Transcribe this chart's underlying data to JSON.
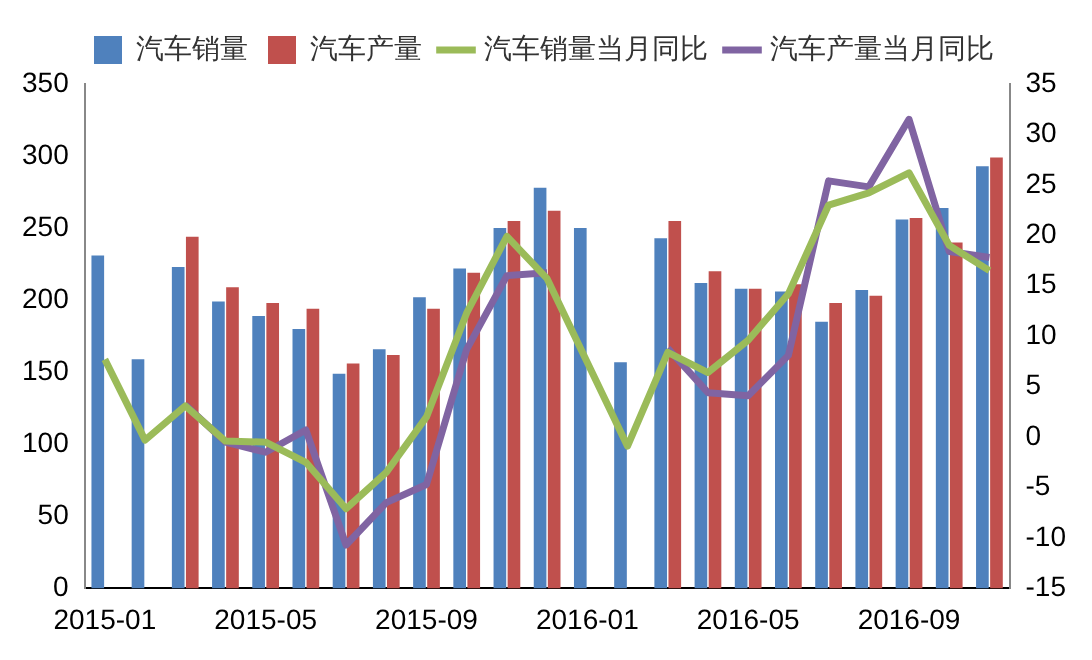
{
  "chart_data": {
    "type": "bar",
    "categories": [
      "2015-01",
      null,
      null,
      null,
      "2015-05",
      null,
      null,
      null,
      "2015-09",
      null,
      null,
      null,
      "2016-01",
      null,
      null,
      null,
      "2016-05",
      null,
      null,
      null,
      "2016-09",
      null,
      null
    ],
    "series": [
      {
        "name": "汽车销量",
        "color": "#4f81bd",
        "values": [
          231,
          159,
          223,
          199,
          189,
          180,
          149,
          166,
          202,
          222,
          250,
          278,
          250,
          157,
          243,
          212,
          208,
          206,
          185,
          207,
          256,
          264,
          293
        ]
      },
      {
        "name": "汽车产量",
        "color": "#c0504d",
        "values": [
          null,
          null,
          244,
          209,
          198,
          194,
          156,
          162,
          194,
          219,
          255,
          262,
          null,
          null,
          255,
          220,
          208,
          211,
          198,
          203,
          257,
          240,
          299
        ]
      },
      {
        "name": "汽车销量当月同比",
        "type": "line",
        "axis": "y2",
        "color": "#9bbb59",
        "values": [
          7.7,
          -0.3,
          3.1,
          -0.4,
          -0.5,
          -2.5,
          -7.1,
          -3.5,
          2.0,
          12.3,
          19.9,
          15.7,
          7.4,
          -0.9,
          8.4,
          6.4,
          9.6,
          14.2,
          23.0,
          24.2,
          26.2,
          19.0,
          16.5
        ]
      },
      {
        "name": "汽车产量当月同比",
        "type": "line",
        "axis": "y2",
        "color": "#8064a2",
        "values": [
          null,
          null,
          3.2,
          -0.5,
          -1.5,
          0.7,
          -10.7,
          -6.5,
          -4.7,
          8.7,
          16.0,
          16.3,
          null,
          null,
          8.8,
          4.4,
          4.1,
          8.1,
          25.4,
          24.8,
          31.5,
          18.4,
          17.8
        ]
      }
    ],
    "ylim": [
      0,
      350
    ],
    "yticks": [
      0,
      50,
      100,
      150,
      200,
      250,
      300,
      350
    ],
    "y2lim": [
      -15,
      35
    ],
    "y2ticks": [
      -15,
      -10,
      -5,
      0,
      5,
      10,
      15,
      20,
      25,
      30,
      35
    ],
    "grid": false,
    "legend": "top",
    "marker": "none",
    "line_style": "solid"
  }
}
